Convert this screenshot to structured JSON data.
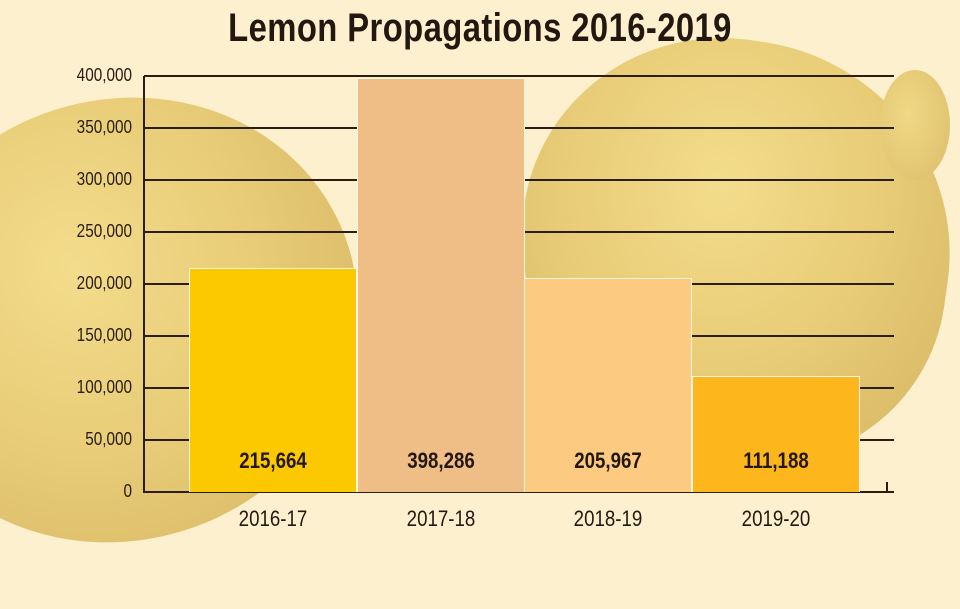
{
  "chart_data": {
    "type": "bar",
    "title": "Lemon Propagations 2016-2019",
    "xlabel": "",
    "ylabel": "",
    "categories": [
      "2016-17",
      "2017-18",
      "2018-19",
      "2019-20"
    ],
    "values": [
      215664,
      398286,
      205967,
      111188
    ],
    "value_labels": [
      "215,664",
      "398,286",
      "205,967",
      "111,188"
    ],
    "bar_colors": [
      "#fcc800",
      "#efbd86",
      "#fdca82",
      "#fdb61c"
    ],
    "ylim": [
      0,
      400000
    ],
    "yticks": [
      0,
      50000,
      100000,
      150000,
      200000,
      250000,
      300000,
      350000,
      400000
    ],
    "ytick_labels": [
      "0",
      "50,000",
      "100,000",
      "150,000",
      "200,000",
      "250,000",
      "300,000",
      "350,000",
      "400,000"
    ],
    "grid": true,
    "legend": null,
    "background": "lemon photo illustration"
  }
}
